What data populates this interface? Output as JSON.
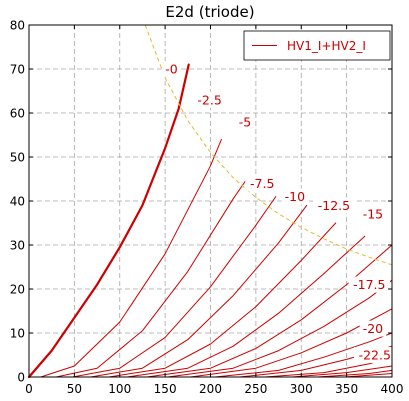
{
  "chart_data": {
    "type": "line",
    "title": "E2d (triode)",
    "xlabel": "",
    "ylabel": "",
    "xlim": [
      0,
      400
    ],
    "ylim": [
      0,
      80
    ],
    "x_ticks": [
      "0",
      "50",
      "100",
      "150",
      "200",
      "250",
      "300",
      "350",
      "400"
    ],
    "y_ticks": [
      "0",
      "10",
      "20",
      "30",
      "40",
      "50",
      "60",
      "70",
      "80"
    ],
    "grid": true,
    "legend": {
      "position": "top-right",
      "entries": [
        "HV1_I+HV2_I"
      ]
    },
    "series_color": "#cc0000",
    "dissipation_color": "#e8b830",
    "series": [
      {
        "name": "HV1_I+HV2_I",
        "label": "-0",
        "x": [
          0,
          25,
          50,
          75,
          100,
          125,
          150,
          165,
          176
        ],
        "y": [
          0,
          6,
          13.5,
          21,
          29.5,
          39,
          52,
          61,
          71
        ]
      },
      {
        "label": "-2.5",
        "x": [
          13,
          50,
          100,
          150,
          200,
          212
        ],
        "y": [
          0,
          2.5,
          12.5,
          28,
          48,
          54
        ]
      },
      {
        "label": "-5",
        "x": [
          30,
          75,
          125,
          175,
          225,
          240
        ],
        "y": [
          0,
          2,
          10.5,
          24,
          40.5,
          45
        ]
      },
      {
        "label": "-7.5",
        "x": [
          48,
          100,
          150,
          200,
          250,
          272
        ],
        "y": [
          0,
          2,
          9,
          20.5,
          34.5,
          41
        ]
      },
      {
        "label": "-10",
        "x": [
          68,
          125,
          175,
          225,
          275,
          306
        ],
        "y": [
          0,
          2,
          8.5,
          18.5,
          30.5,
          39
        ]
      },
      {
        "label": "-12.5",
        "x": [
          88,
          150,
          200,
          250,
          300,
          338
        ],
        "y": [
          0,
          2,
          7.5,
          16,
          26.5,
          35
        ]
      },
      {
        "label": "-15",
        "x": [
          108,
          175,
          225,
          275,
          325,
          370
        ],
        "y": [
          0,
          2,
          7,
          14.5,
          23.5,
          32
        ]
      },
      {
        "label": "-17.5",
        "x": [
          130,
          200,
          250,
          300,
          350,
          400
        ],
        "y": [
          0,
          2,
          6.5,
          13,
          21,
          30
        ]
      },
      {
        "label": "-20",
        "x": [
          153,
          225,
          275,
          325,
          375,
          400
        ],
        "y": [
          0,
          2,
          6,
          11.5,
          18,
          22
        ]
      },
      {
        "label": "-22.5",
        "x": [
          178,
          250,
          300,
          350,
          400
        ],
        "y": [
          0,
          2,
          5.5,
          10,
          15.5
        ]
      },
      {
        "label": "",
        "x": [
          205,
          275,
          325,
          375,
          400
        ],
        "y": [
          0,
          1.5,
          4.5,
          8,
          10
        ]
      },
      {
        "label": "",
        "x": [
          232,
          300,
          350,
          400
        ],
        "y": [
          0,
          1.5,
          4,
          7
        ]
      },
      {
        "label": "",
        "x": [
          260,
          325,
          375,
          400
        ],
        "y": [
          0,
          1,
          3,
          4.5
        ]
      },
      {
        "label": "",
        "x": [
          290,
          350,
          400
        ],
        "y": [
          0,
          1,
          2.5
        ]
      },
      {
        "label": "",
        "x": [
          318,
          375,
          400
        ],
        "y": [
          0,
          0.8,
          1.5
        ]
      },
      {
        "label": "",
        "x": [
          348,
          400
        ],
        "y": [
          0,
          0.8
        ]
      }
    ],
    "dissipation_curve": {
      "x": [
        128,
        150,
        175,
        200,
        225,
        250,
        275,
        300,
        325,
        350,
        375,
        400
      ],
      "y": [
        80,
        68,
        58.3,
        51,
        45.3,
        40.8,
        37.1,
        34,
        31.4,
        29.1,
        27.2,
        25.5
      ]
    },
    "curve_labels": [
      {
        "text": "-0",
        "x": 157,
        "y": 70
      },
      {
        "text": "-2.5",
        "x": 199,
        "y": 63
      },
      {
        "text": "-5",
        "x": 238,
        "y": 58
      },
      {
        "text": "-7.5",
        "x": 257,
        "y": 44
      },
      {
        "text": "-10",
        "x": 293,
        "y": 41
      },
      {
        "text": "-12.5",
        "x": 336,
        "y": 39
      },
      {
        "text": "-15",
        "x": 379,
        "y": 37
      },
      {
        "text": "-17.5",
        "x": 375,
        "y": 21
      },
      {
        "text": "-20",
        "x": 379,
        "y": 11
      },
      {
        "text": "-22.5",
        "x": 381,
        "y": 5
      }
    ]
  }
}
